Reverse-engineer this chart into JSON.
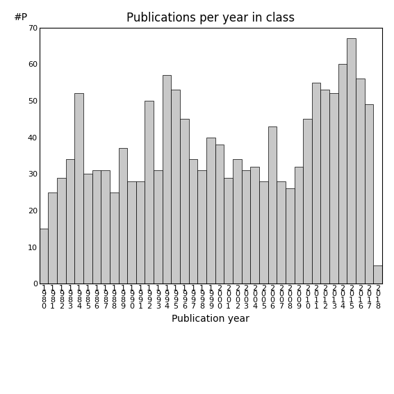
{
  "title": "Publications per year in class",
  "xlabel": "Publication year",
  "ylabel": "#P",
  "ylim": [
    0,
    70
  ],
  "yticks": [
    0,
    10,
    20,
    30,
    40,
    50,
    60,
    70
  ],
  "bar_color": "#c8c8c8",
  "bar_edgecolor": "#000000",
  "years": [
    "1980",
    "1981",
    "1982",
    "1983",
    "1984",
    "1985",
    "1986",
    "1987",
    "1988",
    "1989",
    "1990",
    "1991",
    "1992",
    "1993",
    "1994",
    "1995",
    "1996",
    "1997",
    "1998",
    "1999",
    "2000",
    "2001",
    "2002",
    "2003",
    "2004",
    "2005",
    "2006",
    "2007",
    "2008",
    "2009",
    "2010",
    "2011",
    "2012",
    "2013",
    "2014",
    "2015",
    "2016",
    "2017",
    "2018"
  ],
  "values": [
    15,
    25,
    29,
    34,
    52,
    30,
    31,
    31,
    25,
    37,
    28,
    28,
    50,
    31,
    57,
    53,
    45,
    34,
    31,
    40,
    38,
    29,
    34,
    31,
    32,
    28,
    43,
    28,
    26,
    32,
    45,
    55,
    53,
    52,
    60,
    67,
    56,
    49,
    5
  ],
  "background_color": "#ffffff",
  "title_fontsize": 12,
  "axis_label_fontsize": 10,
  "tick_fontsize": 8
}
